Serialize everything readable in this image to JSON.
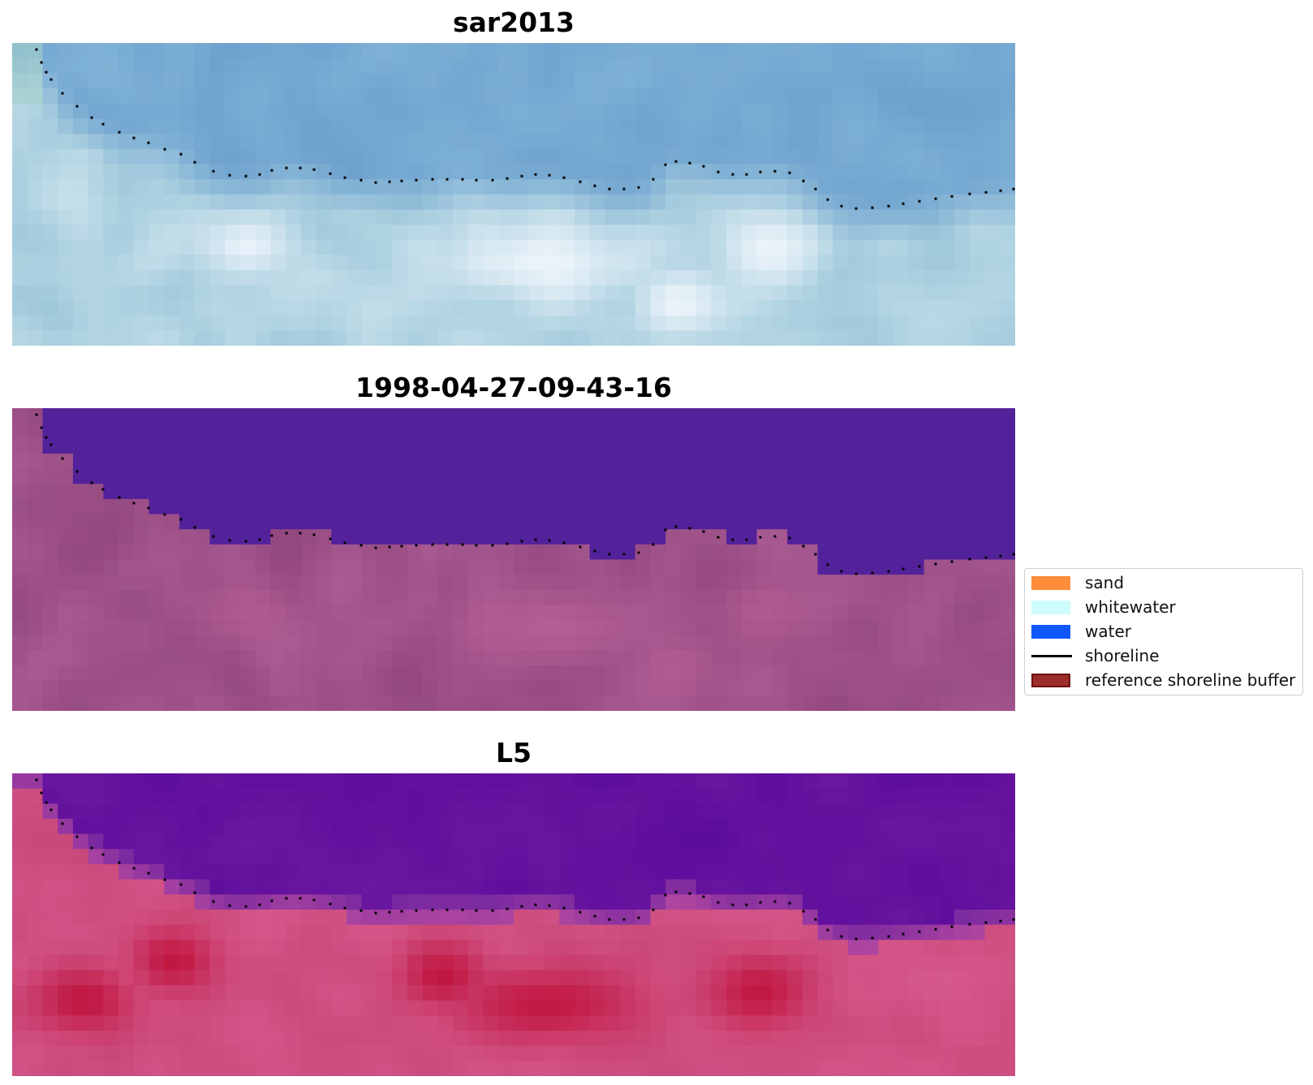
{
  "panels": [
    {
      "title": "sar2013",
      "kind": "rgb"
    },
    {
      "title": "1998-04-27-09-43-16",
      "kind": "classified"
    },
    {
      "title": "L5",
      "kind": "index"
    }
  ],
  "legend": {
    "items": [
      {
        "label": "sand",
        "type": "patch",
        "color": "#ff8c3a"
      },
      {
        "label": "whitewater",
        "type": "patch",
        "color": "#cffcfc"
      },
      {
        "label": "water",
        "type": "patch",
        "color": "#0f58ff"
      },
      {
        "label": "shoreline",
        "type": "line",
        "color": "#000000"
      },
      {
        "label": "reference shoreline buffer",
        "type": "patch",
        "color": "#9c2b2b",
        "edge": "#6e1010"
      }
    ]
  },
  "colors": {
    "sky_water": "#7aaed0",
    "classified_water": "#53229a",
    "classified_land": "#9a4e86",
    "index_water": "#5c0b9c",
    "index_land": "#c8386e"
  }
}
